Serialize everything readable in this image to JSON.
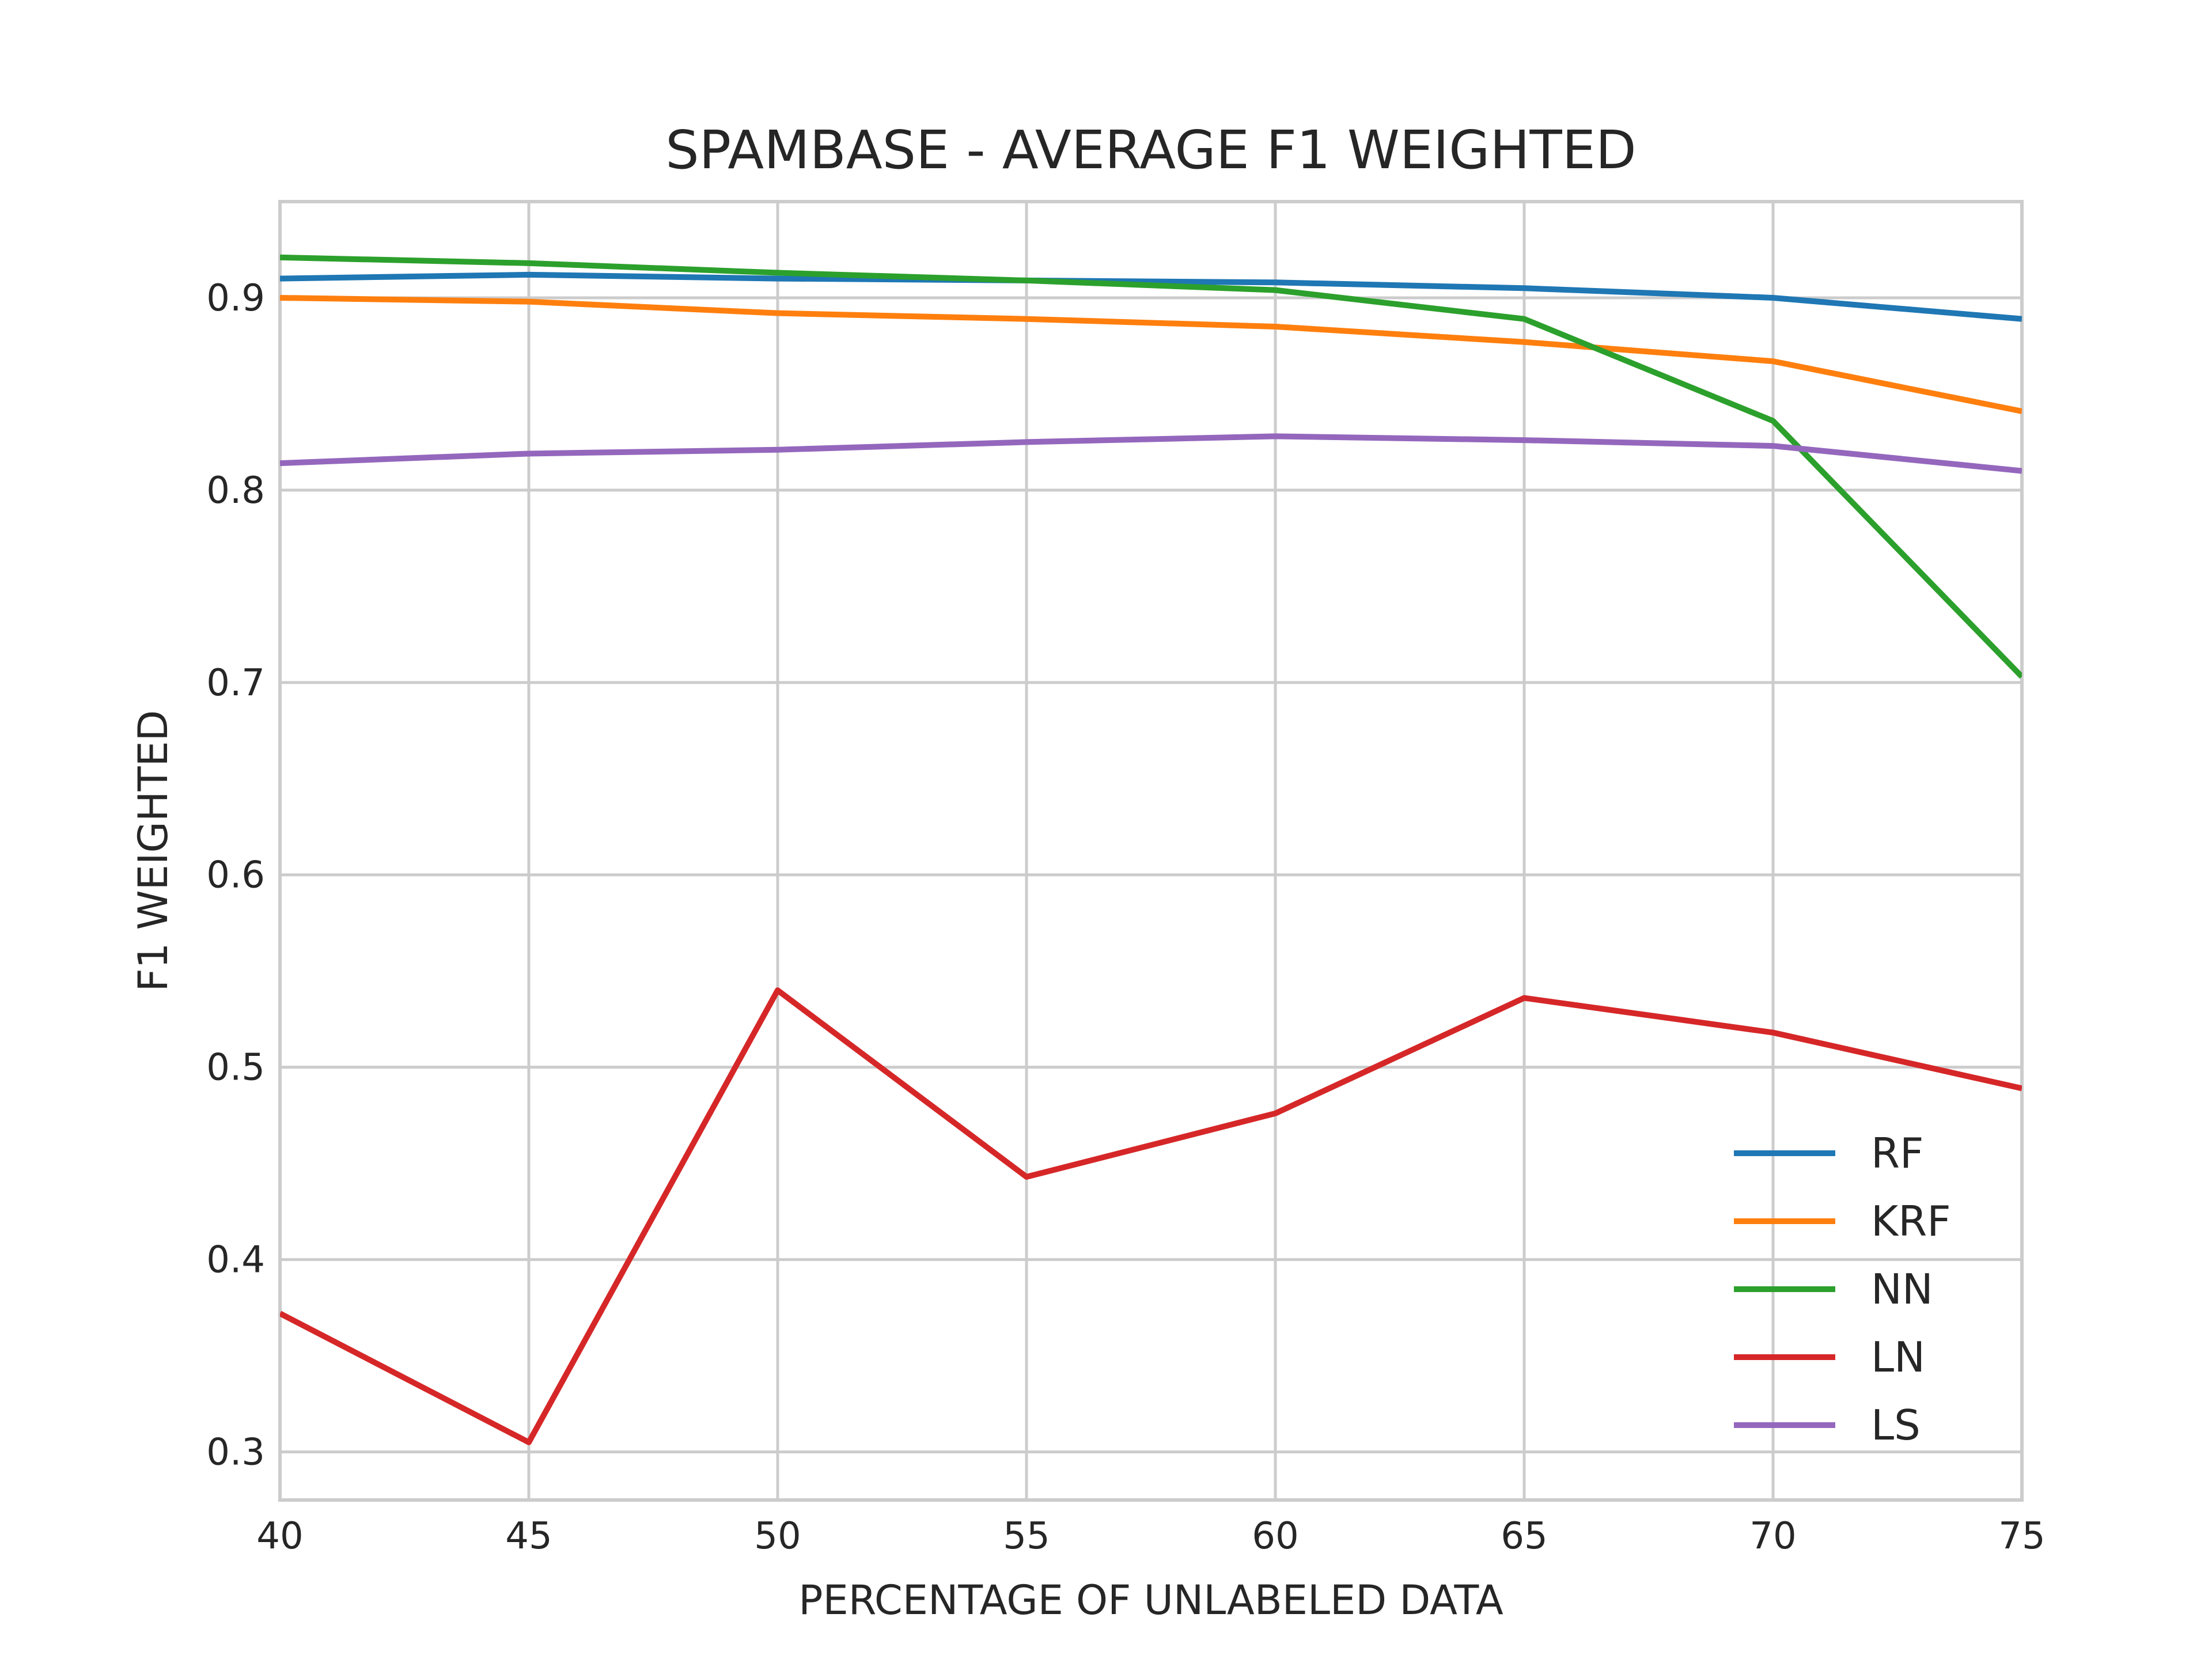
{
  "chart_data": {
    "type": "line",
    "title": "SPAMBASE - AVERAGE F1 WEIGHTED",
    "xlabel": "PERCENTAGE OF UNLABELED DATA",
    "ylabel": "F1 WEIGHTED",
    "x": [
      40,
      45,
      50,
      55,
      60,
      65,
      70,
      75
    ],
    "xlim": [
      40,
      75
    ],
    "ylim": [
      0.275,
      0.95
    ],
    "xticks": [
      40,
      45,
      50,
      55,
      60,
      65,
      70,
      75
    ],
    "xtick_labels": [
      "40",
      "45",
      "50",
      "55",
      "60",
      "65",
      "70",
      "75"
    ],
    "yticks": [
      0.3,
      0.4,
      0.5,
      0.6,
      0.7,
      0.8,
      0.9
    ],
    "ytick_labels": [
      "0.3",
      "0.4",
      "0.5",
      "0.6",
      "0.7",
      "0.8",
      "0.9"
    ],
    "grid": true,
    "legend_position": "lower-right",
    "series": [
      {
        "name": "RF",
        "color": "#1f77b4",
        "values": [
          0.91,
          0.912,
          0.91,
          0.909,
          0.908,
          0.905,
          0.9,
          0.889
        ]
      },
      {
        "name": "KRF",
        "color": "#ff7f0e",
        "values": [
          0.9,
          0.898,
          0.892,
          0.889,
          0.885,
          0.877,
          0.867,
          0.841
        ]
      },
      {
        "name": "NN",
        "color": "#2ca02c",
        "values": [
          0.921,
          0.918,
          0.913,
          0.909,
          0.904,
          0.889,
          0.836,
          0.703
        ]
      },
      {
        "name": "LN",
        "color": "#d62728",
        "values": [
          0.372,
          0.305,
          0.54,
          0.443,
          0.476,
          0.536,
          0.518,
          0.489
        ]
      },
      {
        "name": "LS",
        "color": "#9467bd",
        "values": [
          0.814,
          0.819,
          0.821,
          0.825,
          0.828,
          0.826,
          0.823,
          0.81
        ]
      }
    ]
  }
}
